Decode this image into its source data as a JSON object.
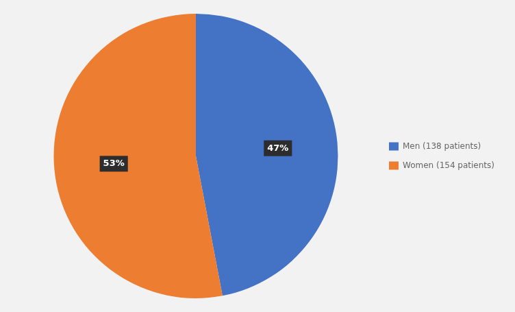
{
  "chart_data": {
    "type": "pie",
    "categories": [
      "Men (138 patients)",
      "Women (154 patients)"
    ],
    "values": [
      47,
      53
    ],
    "value_labels": [
      "47%",
      "53%"
    ],
    "data_labels": true,
    "colors": [
      "#4472C4",
      "#ED7D31"
    ],
    "legend": "right"
  }
}
